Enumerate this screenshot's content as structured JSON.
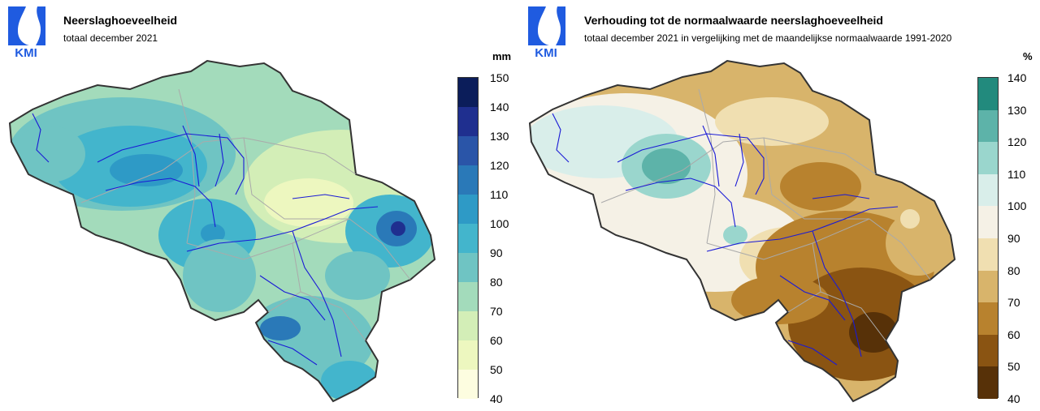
{
  "logo_text": "KMI",
  "left": {
    "title": "Neerslaghoeveelheid",
    "subtitle": "totaal december 2021",
    "unit": "mm",
    "legend": {
      "ticks": [
        "150",
        "140",
        "130",
        "120",
        "110",
        "100",
        "90",
        "80",
        "70",
        "60",
        "50",
        "40"
      ],
      "colors": [
        "#0b1d5a",
        "#1f2f8f",
        "#2a55a8",
        "#2a79b8",
        "#2e9ac6",
        "#43b5cc",
        "#6fc4c3",
        "#a3dbbb",
        "#d3eeb7",
        "#edf7bf",
        "#fdfde0"
      ]
    }
  },
  "right": {
    "title": "Verhouding tot de normaalwaarde neerslaghoeveelheid",
    "subtitle": "totaal december 2021 in vergelijking met de maandelijkse normaalwaarde 1991-2020",
    "unit": "%",
    "legend": {
      "ticks": [
        "140",
        "130",
        "120",
        "110",
        "100",
        "90",
        "80",
        "70",
        "60",
        "50",
        "40"
      ],
      "colors": [
        "#228a7d",
        "#5db3a9",
        "#9ad6cd",
        "#d9eeea",
        "#f5f1e6",
        "#f0dfb1",
        "#d8b46b",
        "#b8822e",
        "#8a5412",
        "#573108"
      ]
    }
  }
}
